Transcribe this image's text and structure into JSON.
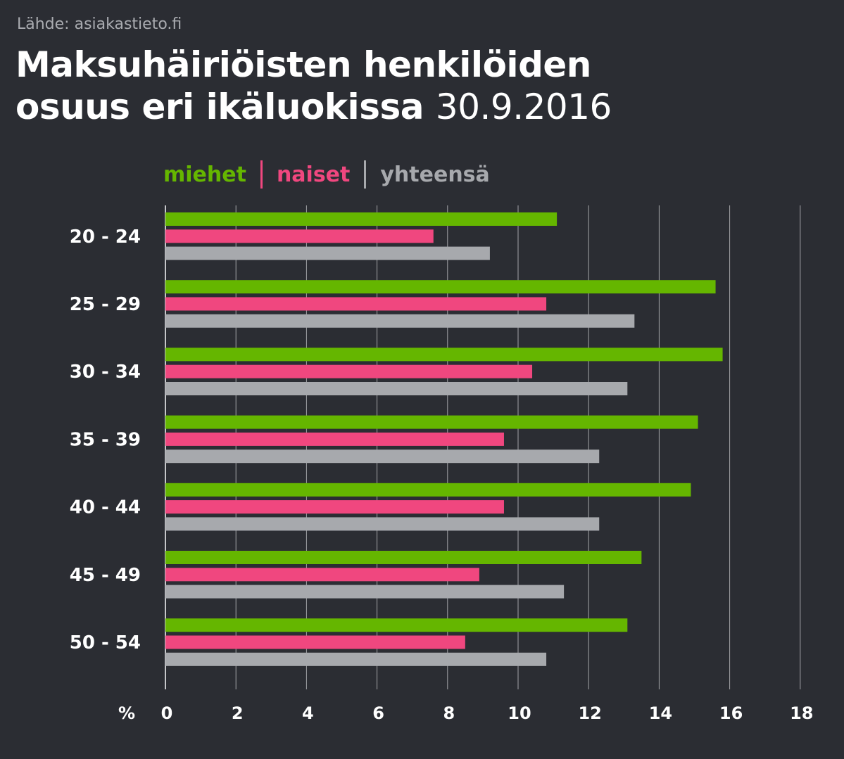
{
  "source": "Lähde: asiakastieto.fi",
  "title": {
    "line1": "Maksuhäiriöisten henkilöiden",
    "line2": "osuus eri ikäluokissa",
    "date": "30.9.2016"
  },
  "colors": {
    "background": "#2b2d33",
    "miehet": "#65b600",
    "naiset": "#f0477f",
    "yhteensa": "#a7a9ad",
    "grid": "#d6d7da"
  },
  "chart_data": {
    "type": "bar",
    "orientation": "horizontal",
    "title": "Maksuhäiriöisten henkilöiden osuus eri ikäluokissa 30.9.2016",
    "xlabel": "%",
    "ylabel": "",
    "xlim": [
      0,
      18
    ],
    "x_ticks": [
      0,
      2,
      4,
      6,
      8,
      10,
      12,
      14,
      16,
      18
    ],
    "grid": true,
    "legend_position": "top",
    "categories": [
      "20 - 24",
      "25 - 29",
      "30 - 34",
      "35 - 39",
      "40 - 44",
      "45 - 49",
      "50 - 54"
    ],
    "series": [
      {
        "name": "miehet",
        "color": "#65b600",
        "values": [
          11.1,
          15.6,
          15.8,
          15.1,
          14.9,
          13.5,
          13.1
        ]
      },
      {
        "name": "naiset",
        "color": "#f0477f",
        "values": [
          7.6,
          10.8,
          10.4,
          9.6,
          9.6,
          8.9,
          8.5
        ]
      },
      {
        "name": "yhteensä",
        "color": "#a7a9ad",
        "values": [
          9.2,
          13.3,
          13.1,
          12.3,
          12.3,
          11.3,
          10.8
        ]
      }
    ]
  }
}
